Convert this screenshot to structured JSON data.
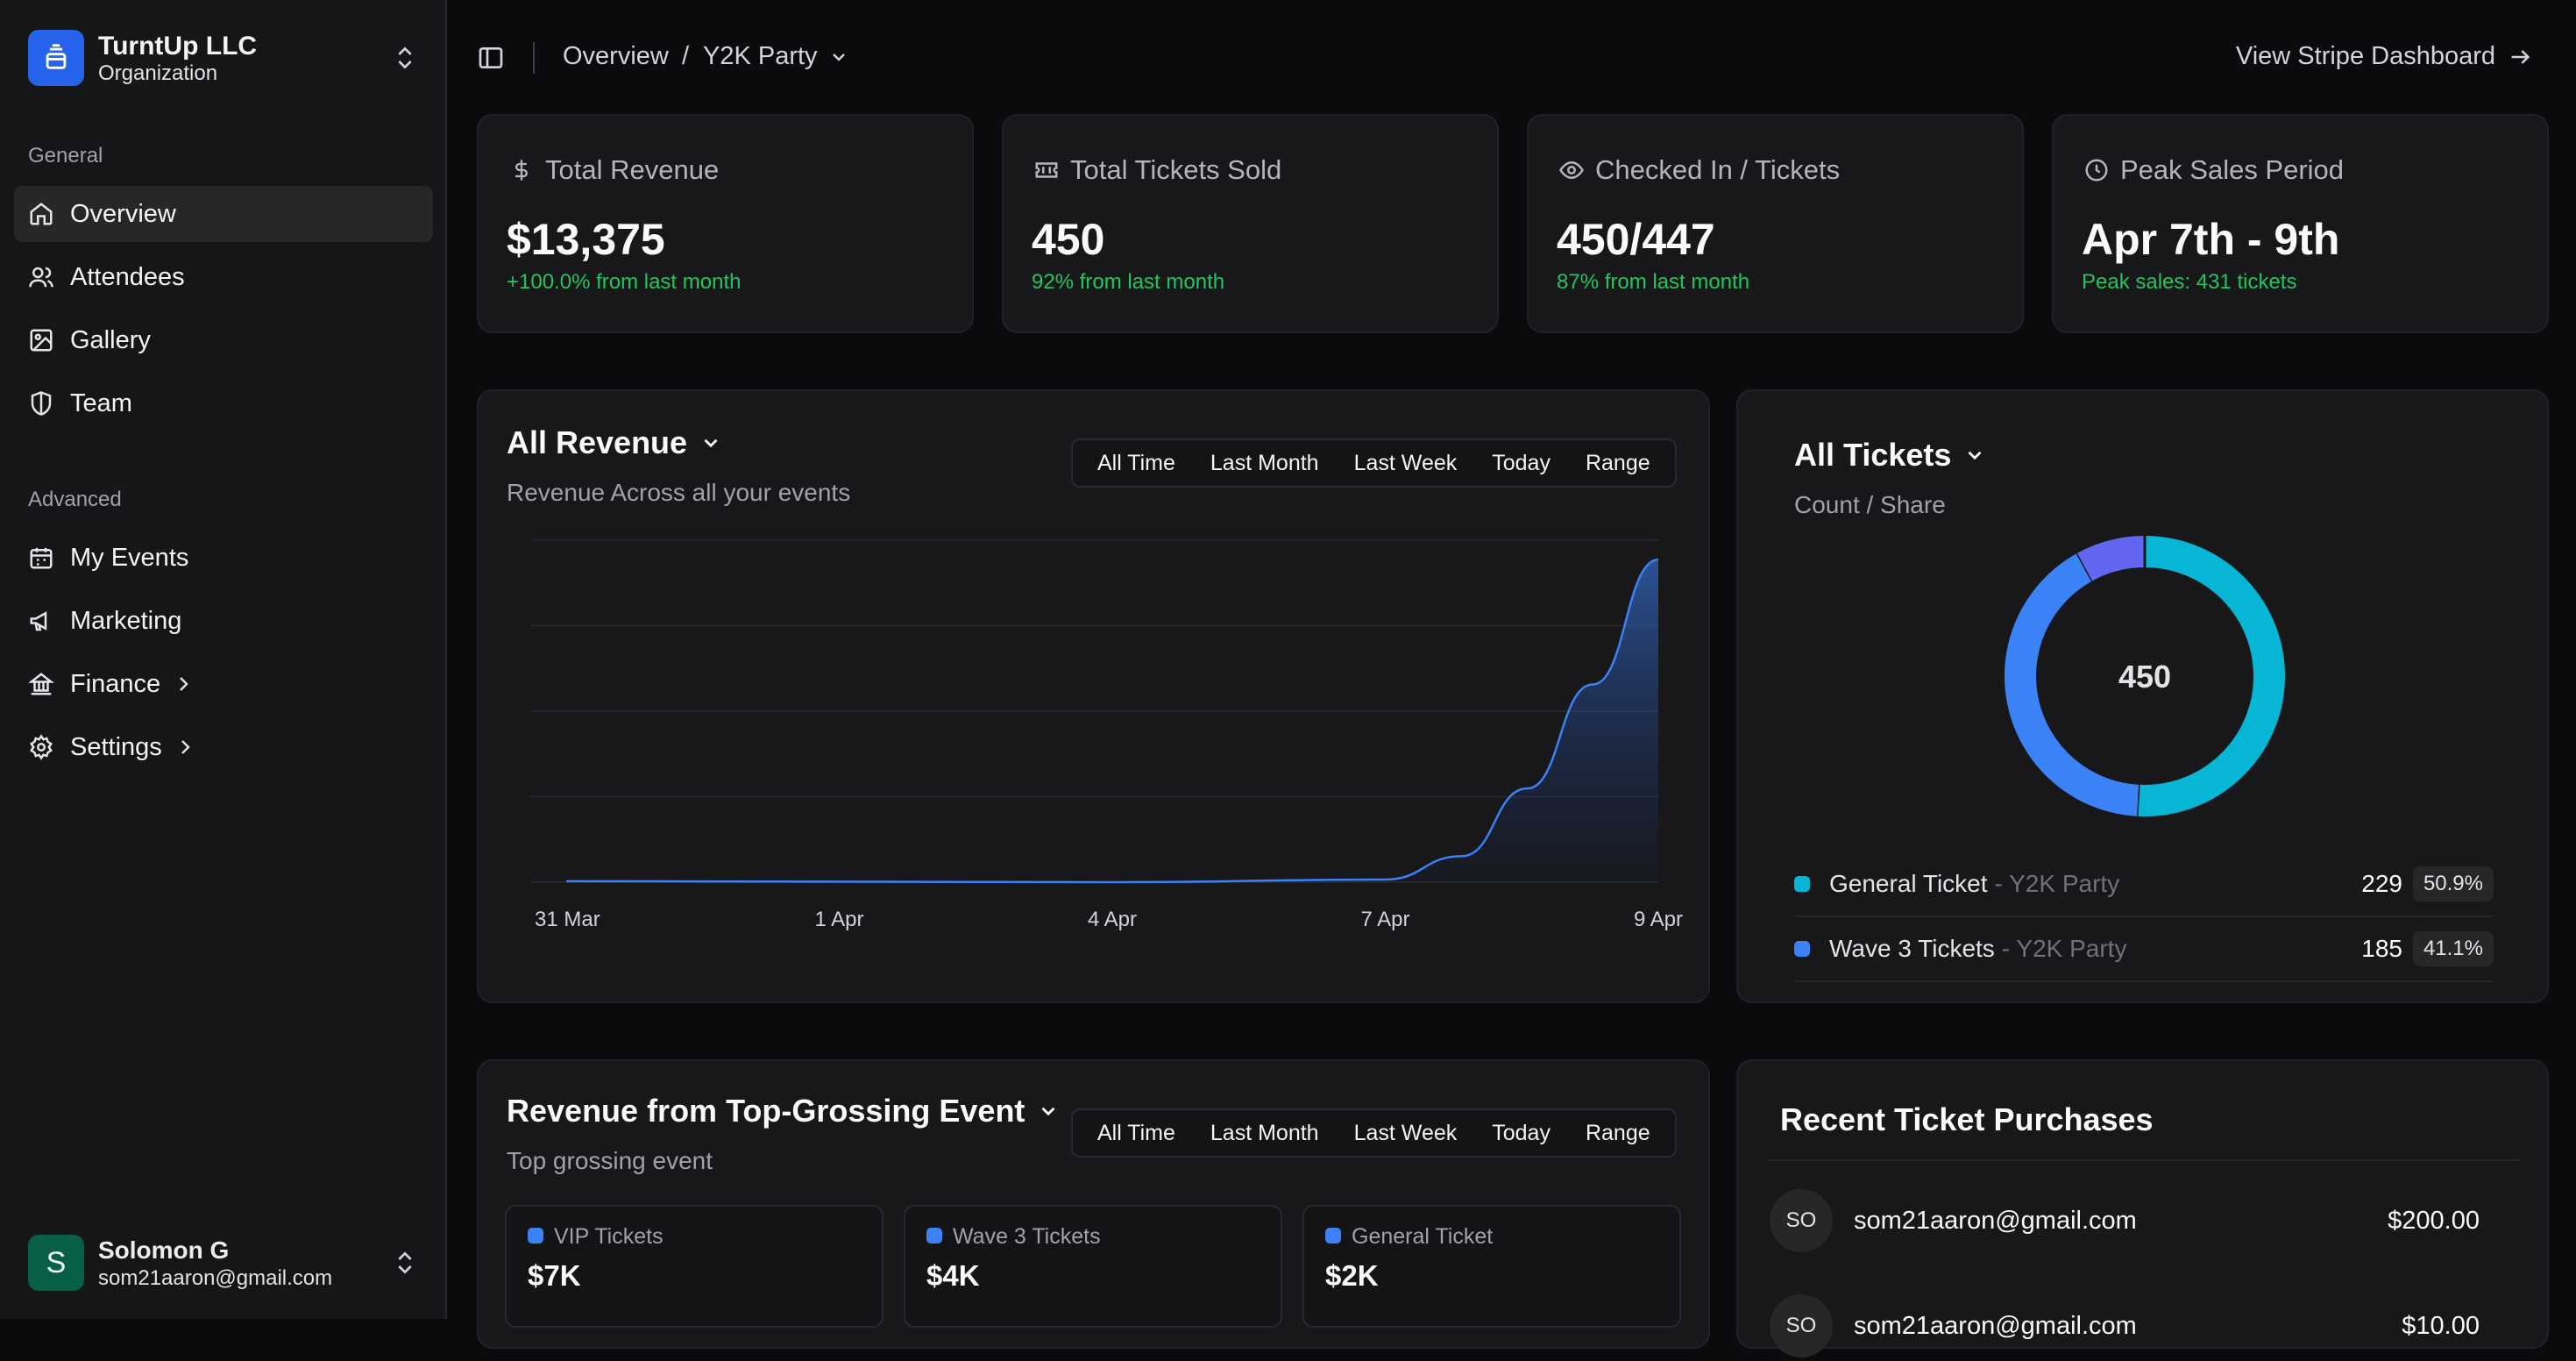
{
  "org": {
    "name": "TurntUp LLC",
    "type": "Organization"
  },
  "sidebar": {
    "general_label": "General",
    "advanced_label": "Advanced",
    "general_items": [
      {
        "label": "Overview",
        "icon": "home-icon",
        "active": true
      },
      {
        "label": "Attendees",
        "icon": "users-icon"
      },
      {
        "label": "Gallery",
        "icon": "image-icon"
      },
      {
        "label": "Team",
        "icon": "shield-icon"
      }
    ],
    "advanced_items": [
      {
        "label": "My Events",
        "icon": "calendar-icon"
      },
      {
        "label": "Marketing",
        "icon": "megaphone-icon"
      },
      {
        "label": "Finance",
        "icon": "landmark-icon",
        "has_children": true
      },
      {
        "label": "Settings",
        "icon": "gear-icon",
        "has_children": true
      }
    ]
  },
  "user": {
    "initial": "S",
    "name": "Solomon G",
    "email": "som21aaron@gmail.com"
  },
  "header": {
    "breadcrumb_root": "Overview",
    "breadcrumb_sep": "/",
    "breadcrumb_event": "Y2K Party",
    "stripe_link": "View Stripe Dashboard"
  },
  "stats": [
    {
      "label": "Total Revenue",
      "icon": "dollar-icon",
      "value": "$13,375",
      "sub": "+100.0% from last month"
    },
    {
      "label": "Total Tickets Sold",
      "icon": "ticket-icon",
      "value": "450",
      "sub": "92% from last month"
    },
    {
      "label": "Checked In / Tickets",
      "icon": "eye-icon",
      "value": "450/447",
      "sub": "87% from last month"
    },
    {
      "label": "Peak Sales Period",
      "icon": "clock-icon",
      "value": "Apr 7th - 9th",
      "sub": "Peak sales: 431 tickets"
    }
  ],
  "revenue": {
    "title": "All Revenue",
    "subtitle": "Revenue Across all your events",
    "filters": [
      "All Time",
      "Last Month",
      "Last Week",
      "Today",
      "Range"
    ]
  },
  "tickets": {
    "title": "All Tickets",
    "subtitle": "Count / Share",
    "total": "450",
    "rows": [
      {
        "name": "General Ticket",
        "event": "- Y2K Party",
        "count": "229",
        "pct": "50.9%",
        "color": "#06b6d4"
      },
      {
        "name": "Wave 3 Tickets",
        "event": "- Y2K Party",
        "count": "185",
        "pct": "41.1%",
        "color": "#3b82f6"
      }
    ]
  },
  "top_event": {
    "title": "Revenue from Top-Grossing Event",
    "subtitle": "Top grossing event",
    "filters": [
      "All Time",
      "Last Month",
      "Last Week",
      "Today",
      "Range"
    ],
    "cards": [
      {
        "label": "VIP Tickets",
        "value": "$7K"
      },
      {
        "label": "Wave 3 Tickets",
        "value": "$4K"
      },
      {
        "label": "General Ticket",
        "value": "$2K"
      }
    ]
  },
  "purchases": {
    "title": "Recent Ticket Purchases",
    "rows": [
      {
        "initials": "SO",
        "email": "som21aaron@gmail.com",
        "amount": "$200.00"
      },
      {
        "initials": "SO",
        "email": "som21aaron@gmail.com",
        "amount": "$10.00"
      }
    ]
  },
  "chart_data": [
    {
      "type": "area",
      "title": "All Revenue",
      "categories": [
        "31 Mar",
        "1 Apr",
        "4 Apr",
        "7 Apr",
        "9 Apr"
      ],
      "x": [
        "31 Mar",
        "1 Apr",
        "4 Apr",
        "7 Apr",
        "7.5 Apr",
        "8 Apr",
        "8.5 Apr",
        "9 Apr"
      ],
      "series": [
        {
          "values": [
            20,
            10,
            0,
            50,
            500,
            1800,
            3800,
            6200
          ],
          "color": "#3b82f6"
        }
      ],
      "grid": true,
      "note": "y-axis unlabeled; values estimated relative"
    },
    {
      "type": "pie",
      "title": "All Tickets",
      "center_label": "450",
      "slices": [
        {
          "name": "General Ticket",
          "value": 229,
          "color": "#06b6d4"
        },
        {
          "name": "Wave 3 Tickets",
          "value": 185,
          "color": "#3b82f6"
        },
        {
          "value": 36,
          "color": "#6366f1"
        }
      ]
    }
  ]
}
